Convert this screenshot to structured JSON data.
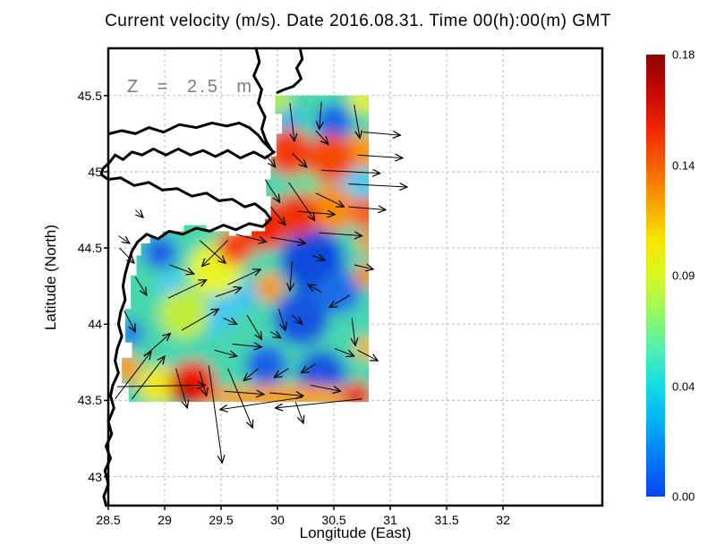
{
  "chart_data": {
    "type": "heatmap",
    "subtype": "ocean-current speed field with quiver arrows over coastline map",
    "title": "Current velocity (m/s). Date 2016.08.31. Time 00(h):00(m) GMT",
    "xlabel": "Longitude (East)",
    "ylabel": "Latitude (North)",
    "depth_label": "Z = 2.5 m",
    "x_ticks": [
      28.5,
      29,
      29.5,
      30,
      30.5,
      31,
      31.5,
      32
    ],
    "y_ticks": [
      45.5,
      45,
      44.5,
      44,
      43.5,
      43
    ],
    "x_range": [
      28.5,
      32.88
    ],
    "y_range": [
      42.81,
      45.81
    ],
    "grid": true,
    "grid_color": "#b8b8b8",
    "colorbar": {
      "min": 0.0,
      "max": 0.18,
      "tick_labels": [
        "0.18",
        "0.14",
        "0.09",
        "0.04",
        "0.00"
      ],
      "tick_values": [
        0.18,
        0.135,
        0.09,
        0.045,
        0.0
      ],
      "gradient_bottom_to_top": [
        "#0844f0",
        "#0478f8",
        "#04aef8",
        "#10dce8",
        "#50f0b0",
        "#97f860",
        "#d8f820",
        "#f8e400",
        "#f8a000",
        "#f86000",
        "#f02400",
        "#c40800",
        "#8c0000"
      ]
    },
    "field_extent": {
      "lon": [
        28.62,
        30.81
      ],
      "lat": [
        43.49,
        45.5
      ]
    },
    "field_polygon_lonlat": [
      [
        29.98,
        45.5
      ],
      [
        30.81,
        45.5
      ],
      [
        30.81,
        43.49
      ],
      [
        28.68,
        43.49
      ],
      [
        28.68,
        43.61
      ],
      [
        28.62,
        43.61
      ],
      [
        28.62,
        43.78
      ],
      [
        28.71,
        43.78
      ],
      [
        28.71,
        43.88
      ],
      [
        28.65,
        43.88
      ],
      [
        28.65,
        44.1
      ],
      [
        28.7,
        44.1
      ],
      [
        28.7,
        44.32
      ],
      [
        28.75,
        44.32
      ],
      [
        28.75,
        44.45
      ],
      [
        28.79,
        44.45
      ],
      [
        28.79,
        44.53
      ],
      [
        28.87,
        44.53
      ],
      [
        28.87,
        44.57
      ],
      [
        28.98,
        44.57
      ],
      [
        28.98,
        44.61
      ],
      [
        29.17,
        44.61
      ],
      [
        29.17,
        44.65
      ],
      [
        29.37,
        44.65
      ],
      [
        29.37,
        44.61
      ],
      [
        29.57,
        44.61
      ],
      [
        29.57,
        44.58
      ],
      [
        29.77,
        44.58
      ],
      [
        29.77,
        44.61
      ],
      [
        29.89,
        44.61
      ],
      [
        29.89,
        44.69
      ],
      [
        29.94,
        44.69
      ],
      [
        29.94,
        44.84
      ],
      [
        29.9,
        44.84
      ],
      [
        29.9,
        44.95
      ],
      [
        29.94,
        44.95
      ],
      [
        29.94,
        45.1
      ],
      [
        29.99,
        45.1
      ],
      [
        29.99,
        45.25
      ],
      [
        30.04,
        45.25
      ],
      [
        30.04,
        45.38
      ],
      [
        29.98,
        45.38
      ]
    ],
    "base_field": {
      "color": "#46d6ae",
      "value_mps": 0.07
    },
    "blob_format": "[lon, lat, radius_px, color, value_mps, optional_rx_px]",
    "blobs": [
      [
        29.53,
        44.81,
        32,
        "#8ce85c",
        0.09
      ],
      [
        30.25,
        44.92,
        20,
        "#64dc9c",
        0.08
      ],
      [
        30.68,
        44.92,
        22,
        "#44ccf0",
        0.05
      ],
      [
        29.45,
        44.06,
        22,
        "#40c8f0",
        0.05
      ],
      [
        29.06,
        44.25,
        16,
        "#48ccf0",
        0.05
      ],
      [
        29.69,
        44.19,
        18,
        "#40c4f0",
        0.05
      ],
      [
        30.1,
        45.36,
        14,
        "#38aaf4",
        0.04
      ],
      [
        30.5,
        45.32,
        21,
        "#1464e8",
        0.02
      ],
      [
        30.31,
        44.42,
        36,
        "#104cdc",
        0.01
      ],
      [
        30.21,
        44.04,
        31,
        "#1254e0",
        0.015
      ],
      [
        30.55,
        44.21,
        24,
        "#1e6ee8",
        0.02
      ],
      [
        29.9,
        43.73,
        23,
        "#1a60e6",
        0.02
      ],
      [
        30.39,
        43.67,
        27,
        "#1252e0",
        0.015
      ],
      [
        28.96,
        44.47,
        19,
        "#1a62e8",
        0.02
      ],
      [
        28.7,
        43.94,
        14,
        "#2272ea",
        0.025
      ],
      [
        29.45,
        44.36,
        30,
        "#e8f428",
        0.105
      ],
      [
        29.17,
        44.07,
        28,
        "#c0ee3c",
        0.095
      ],
      [
        28.94,
        43.6,
        22,
        "#f0e81c",
        0.11
      ],
      [
        30.01,
        45.47,
        15,
        "#b8ec48",
        0.095
      ],
      [
        30.76,
        45.47,
        16,
        "#e8f020",
        0.105
      ],
      [
        30.76,
        45.14,
        20,
        "#f89800",
        0.13
      ],
      [
        30.48,
        44.76,
        26,
        "#f88c00",
        0.135
      ],
      [
        30.79,
        44.73,
        18,
        "#f85800",
        0.15
      ],
      [
        29.93,
        44.24,
        16,
        "#f89400",
        0.13
      ],
      [
        30.79,
        44.32,
        14,
        "#f88c00",
        0.135
      ],
      [
        28.66,
        43.71,
        16,
        "#f89c00",
        0.13
      ],
      [
        30.79,
        43.84,
        13,
        "#f8b400",
        0.125
      ],
      [
        30.8,
        44.54,
        12,
        "#f89000",
        0.13
      ],
      [
        30.09,
        43.52,
        14,
        "#f8a000",
        0.13,
        95
      ],
      [
        30.1,
        45.13,
        26,
        "#f43808",
        0.16
      ],
      [
        30.47,
        45.09,
        27,
        "#f44c04",
        0.155
      ],
      [
        29.89,
        44.65,
        28,
        "#f02800",
        0.165
      ],
      [
        30.17,
        44.72,
        24,
        "#f03000",
        0.16
      ],
      [
        29.63,
        44.51,
        20,
        "#f44008",
        0.155
      ],
      [
        29.25,
        43.61,
        26,
        "#ee1c00",
        0.17
      ],
      [
        29.17,
        43.54,
        13,
        "#b00000",
        0.18
      ],
      [
        30.71,
        43.53,
        16,
        "#f02400",
        0.165
      ]
    ],
    "arrow_format": "[lon, lat, dlon, dlat] tail at lon/lat, vector in degrees",
    "arrows": [
      [
        30.11,
        45.45,
        0.04,
        -0.25
      ],
      [
        30.39,
        45.46,
        -0.02,
        -0.18
      ],
      [
        30.68,
        45.44,
        0.05,
        -0.22
      ],
      [
        30.34,
        45.27,
        0.11,
        -0.09
      ],
      [
        30.76,
        45.26,
        0.33,
        -0.02
      ],
      [
        29.9,
        45.11,
        0.08,
        -0.08
      ],
      [
        30.13,
        45.12,
        0.13,
        -0.09
      ],
      [
        30.71,
        45.11,
        0.4,
        -0.02
      ],
      [
        30.39,
        45.01,
        0.52,
        -0.02
      ],
      [
        30.63,
        44.92,
        0.52,
        -0.02
      ],
      [
        29.89,
        44.95,
        0.13,
        -0.15
      ],
      [
        30.1,
        44.93,
        0.23,
        -0.25
      ],
      [
        30.34,
        44.86,
        0.25,
        -0.09
      ],
      [
        29.94,
        44.77,
        0.13,
        -0.12
      ],
      [
        30.18,
        44.74,
        0.33,
        -0.02
      ],
      [
        30.63,
        44.77,
        0.33,
        -0.02
      ],
      [
        29.94,
        44.57,
        0.31,
        -0.04
      ],
      [
        30.37,
        44.6,
        0.38,
        -0.02
      ],
      [
        29.56,
        44.55,
        -0.23,
        -0.17
      ],
      [
        29.31,
        44.55,
        0.23,
        -0.15
      ],
      [
        29.63,
        44.59,
        0.27,
        -0.05
      ],
      [
        29.04,
        44.39,
        0.22,
        -0.06
      ],
      [
        28.74,
        44.75,
        0.07,
        -0.05
      ],
      [
        28.59,
        44.58,
        0.1,
        -0.05
      ],
      [
        28.6,
        44.5,
        0.13,
        -0.1
      ],
      [
        28.74,
        44.31,
        0.1,
        -0.12
      ],
      [
        28.64,
        44.09,
        0.1,
        -0.14
      ],
      [
        29.03,
        44.17,
        0.34,
        0.12
      ],
      [
        29.15,
        43.96,
        0.33,
        0.14
      ],
      [
        28.82,
        43.79,
        0.23,
        0.15
      ],
      [
        28.56,
        43.51,
        0.32,
        0.31
      ],
      [
        28.71,
        43.51,
        0.29,
        0.28
      ],
      [
        29.56,
        44.26,
        0.29,
        0.1
      ],
      [
        29.45,
        44.18,
        0.23,
        0.06
      ],
      [
        30.13,
        44.41,
        -0.02,
        -0.19
      ],
      [
        30.39,
        44.21,
        -0.12,
        0.05
      ],
      [
        30.64,
        44.19,
        -0.18,
        -0.08
      ],
      [
        30.68,
        44.39,
        0.17,
        -0.03
      ],
      [
        30.31,
        44.45,
        0.11,
        -0.03
      ],
      [
        30.13,
        44.06,
        0.09,
        -0.06
      ],
      [
        30.66,
        44.04,
        0.03,
        -0.18
      ],
      [
        29.94,
        43.95,
        0.09,
        -0.04
      ],
      [
        29.52,
        44.04,
        0.12,
        -0.04
      ],
      [
        29.73,
        44.06,
        0.13,
        -0.16
      ],
      [
        30.01,
        44.1,
        0.06,
        -0.14
      ],
      [
        29.1,
        43.71,
        0.1,
        -0.26
      ],
      [
        29.31,
        43.69,
        0.06,
        -0.16
      ],
      [
        29.44,
        43.83,
        0.2,
        -0.04
      ],
      [
        29.6,
        43.87,
        0.26,
        -0.02
      ],
      [
        29.83,
        43.71,
        -0.13,
        -0.08
      ],
      [
        30.1,
        43.71,
        -0.13,
        -0.06
      ],
      [
        30.34,
        43.74,
        -0.13,
        -0.06
      ],
      [
        30.51,
        43.84,
        0.17,
        -0.05
      ],
      [
        30.71,
        43.83,
        0.18,
        -0.07
      ],
      [
        29.53,
        43.56,
        0.35,
        -0.02
      ],
      [
        29.93,
        43.55,
        0.3,
        -0.02
      ],
      [
        28.58,
        43.59,
        0.78,
        0.01
      ],
      [
        30.29,
        43.6,
        0.27,
        -0.04
      ],
      [
        29.39,
        43.73,
        0.12,
        -0.64
      ],
      [
        29.56,
        43.71,
        0.22,
        -0.39
      ],
      [
        30.22,
        43.52,
        -0.73,
        -0.08
      ],
      [
        30.75,
        43.51,
        -0.77,
        -0.06
      ],
      [
        30.16,
        43.49,
        0.07,
        -0.14
      ]
    ],
    "coastlines_lonlat": [
      [
        [
          29.81,
          45.81
        ],
        [
          29.84,
          45.72
        ],
        [
          29.79,
          45.63
        ],
        [
          29.86,
          45.54
        ],
        [
          29.83,
          45.45
        ],
        [
          29.89,
          45.36
        ],
        [
          29.86,
          45.28
        ],
        [
          29.9,
          45.2
        ],
        [
          29.95,
          45.14
        ]
      ],
      [
        [
          30.2,
          45.81
        ],
        [
          30.22,
          45.74
        ],
        [
          30.17,
          45.68
        ],
        [
          30.21,
          45.61
        ],
        [
          30.14,
          45.56
        ],
        [
          30.06,
          45.54
        ],
        [
          30.0,
          45.52
        ]
      ],
      [
        [
          28.51,
          45.25
        ],
        [
          28.62,
          45.27
        ],
        [
          28.74,
          45.25
        ],
        [
          28.86,
          45.29
        ],
        [
          28.99,
          45.26
        ],
        [
          29.13,
          45.31
        ],
        [
          29.28,
          45.29
        ],
        [
          29.42,
          45.32
        ],
        [
          29.55,
          45.3
        ],
        [
          29.66,
          45.32
        ],
        [
          29.75,
          45.29
        ],
        [
          29.83,
          45.24
        ],
        [
          29.87,
          45.2
        ],
        [
          29.91,
          45.17
        ],
        [
          29.95,
          45.14
        ]
      ],
      [
        [
          29.97,
          45.13
        ],
        [
          29.89,
          45.09
        ],
        [
          29.79,
          45.13
        ],
        [
          29.67,
          45.09
        ],
        [
          29.56,
          45.14
        ],
        [
          29.45,
          45.1
        ],
        [
          29.34,
          45.14
        ],
        [
          29.23,
          45.11
        ],
        [
          29.12,
          45.15
        ],
        [
          29.01,
          45.11
        ],
        [
          28.9,
          45.15
        ],
        [
          28.8,
          45.11
        ],
        [
          28.71,
          45.13
        ],
        [
          28.63,
          45.08
        ],
        [
          28.56,
          45.11
        ],
        [
          28.51,
          45.06
        ],
        [
          28.45,
          45.02
        ],
        [
          28.44,
          44.98
        ],
        [
          28.5,
          44.95
        ],
        [
          28.61,
          44.96
        ],
        [
          28.73,
          44.91
        ],
        [
          28.86,
          44.93
        ],
        [
          28.98,
          44.88
        ],
        [
          29.11,
          44.89
        ],
        [
          29.24,
          44.84
        ],
        [
          29.37,
          44.86
        ],
        [
          29.48,
          44.81
        ],
        [
          29.6,
          44.82
        ],
        [
          29.71,
          44.77
        ],
        [
          29.8,
          44.79
        ],
        [
          29.89,
          44.74
        ],
        [
          29.94,
          44.69
        ],
        [
          29.87,
          44.64
        ],
        [
          29.75,
          44.66
        ],
        [
          29.63,
          44.62
        ],
        [
          29.52,
          44.65
        ],
        [
          29.4,
          44.61
        ],
        [
          29.28,
          44.63
        ],
        [
          29.16,
          44.59
        ],
        [
          29.04,
          44.61
        ],
        [
          28.94,
          44.56
        ],
        [
          28.84,
          44.59
        ],
        [
          28.76,
          44.54
        ],
        [
          28.71,
          44.48
        ],
        [
          28.68,
          44.41
        ],
        [
          28.65,
          44.33
        ],
        [
          28.63,
          44.25
        ],
        [
          28.65,
          44.16
        ],
        [
          28.61,
          44.08
        ],
        [
          28.59,
          44.0
        ],
        [
          28.62,
          43.92
        ],
        [
          28.58,
          43.84
        ],
        [
          28.56,
          43.76
        ],
        [
          28.59,
          43.68
        ],
        [
          28.54,
          43.6
        ],
        [
          28.52,
          43.53
        ],
        [
          28.55,
          43.45
        ],
        [
          28.5,
          43.36
        ],
        [
          28.53,
          43.28
        ],
        [
          28.48,
          43.2
        ],
        [
          28.52,
          43.12
        ],
        [
          28.47,
          43.04
        ],
        [
          28.5,
          42.95
        ],
        [
          28.46,
          42.87
        ],
        [
          28.48,
          42.81
        ]
      ]
    ]
  }
}
